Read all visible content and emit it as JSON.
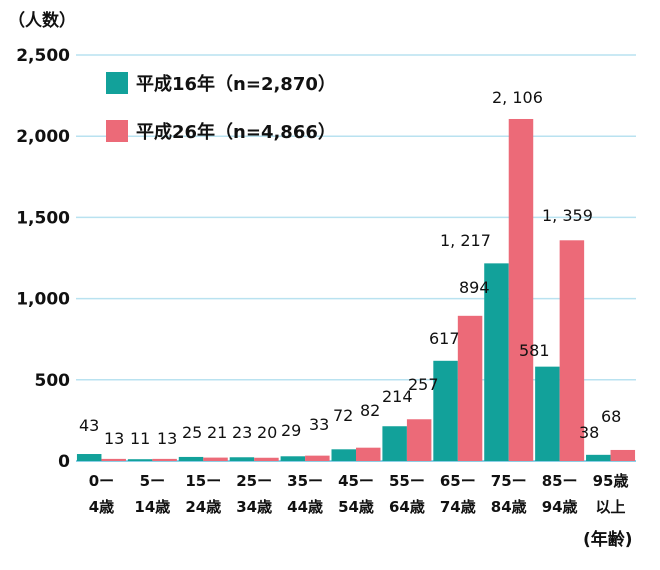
{
  "chart_data": {
    "type": "bar",
    "y_unit_label": "（人数）",
    "x_unit_label": "(年齢)",
    "ylim": [
      0,
      2500
    ],
    "yticks": [
      0,
      500,
      1000,
      1500,
      2000,
      2500
    ],
    "ytick_labels": [
      "0",
      "500",
      "1,000",
      "1,500",
      "2,000",
      "2,500"
    ],
    "grid": true,
    "legend_position": "top-left",
    "categories": [
      [
        "0ー",
        "4歳"
      ],
      [
        "5ー",
        "14歳"
      ],
      [
        "15ー",
        "24歳"
      ],
      [
        "25ー",
        "34歳"
      ],
      [
        "35ー",
        "44歳"
      ],
      [
        "45ー",
        "54歳"
      ],
      [
        "55ー",
        "64歳"
      ],
      [
        "65ー",
        "74歳"
      ],
      [
        "75ー",
        "84歳"
      ],
      [
        "85ー",
        "94歳"
      ],
      [
        "95歳",
        "以上"
      ]
    ],
    "series": [
      {
        "name": "平成16年（n=2,870）",
        "color": "#12A19A",
        "values": [
          43,
          11,
          25,
          23,
          29,
          72,
          214,
          617,
          1217,
          581,
          38
        ],
        "labels": [
          "43",
          "11",
          "25",
          "23",
          "29",
          "72",
          "214",
          "617",
          "1, 217",
          "581",
          "38"
        ]
      },
      {
        "name": "平成26年（n=4,866）",
        "color": "#EC6A78",
        "values": [
          13,
          13,
          21,
          20,
          33,
          82,
          257,
          894,
          2106,
          1359,
          68
        ],
        "labels": [
          "13",
          "13",
          "21",
          "20",
          "33",
          "82",
          "257",
          "894",
          "2, 106",
          "1, 359",
          "68"
        ]
      }
    ]
  }
}
